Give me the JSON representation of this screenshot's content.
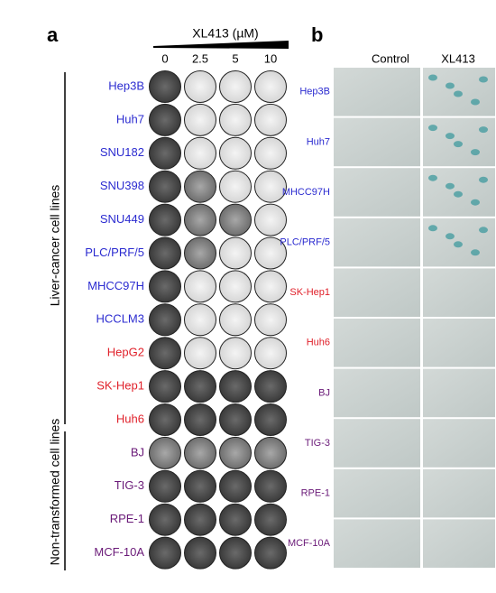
{
  "panel_a": {
    "label": "a",
    "treatment": "XL413 (µM)",
    "doses": [
      "0",
      "2.5",
      "5",
      "10"
    ],
    "groups": [
      "Liver-cancer cell lines",
      "Non-transformed cell lines"
    ],
    "rows": [
      {
        "name": "Hep3B",
        "color": "#2b2bd0"
      },
      {
        "name": "Huh7",
        "color": "#2b2bd0"
      },
      {
        "name": "SNU182",
        "color": "#2b2bd0"
      },
      {
        "name": "SNU398",
        "color": "#2b2bd0"
      },
      {
        "name": "SNU449",
        "color": "#2b2bd0"
      },
      {
        "name": "PLC/PRF/5",
        "color": "#2b2bd0"
      },
      {
        "name": "MHCC97H",
        "color": "#2b2bd0"
      },
      {
        "name": "HCCLM3",
        "color": "#2b2bd0"
      },
      {
        "name": "HepG2",
        "color": "#e0202a"
      },
      {
        "name": "SK-Hep1",
        "color": "#e0202a"
      },
      {
        "name": "Huh6",
        "color": "#e0202a"
      },
      {
        "name": "BJ",
        "color": "#6a1a78"
      },
      {
        "name": "TIG-3",
        "color": "#6a1a78"
      },
      {
        "name": "RPE-1",
        "color": "#6a1a78"
      },
      {
        "name": "MCF-10A",
        "color": "#6a1a78"
      }
    ]
  },
  "panel_b": {
    "label": "b",
    "columns": [
      "Control",
      "XL413"
    ],
    "rows": [
      {
        "name": "Hep3B",
        "color": "#2b2bd0"
      },
      {
        "name": "Huh7",
        "color": "#2b2bd0"
      },
      {
        "name": "MHCC97H",
        "color": "#2b2bd0"
      },
      {
        "name": "PLC/PRF/5",
        "color": "#2b2bd0"
      },
      {
        "name": "SK-Hep1",
        "color": "#e0202a"
      },
      {
        "name": "Huh6",
        "color": "#e0202a"
      },
      {
        "name": "BJ",
        "color": "#6a1a78"
      },
      {
        "name": "TIG-3",
        "color": "#6a1a78"
      },
      {
        "name": "RPE-1",
        "color": "#6a1a78"
      },
      {
        "name": "MCF-10A",
        "color": "#6a1a78"
      }
    ]
  }
}
